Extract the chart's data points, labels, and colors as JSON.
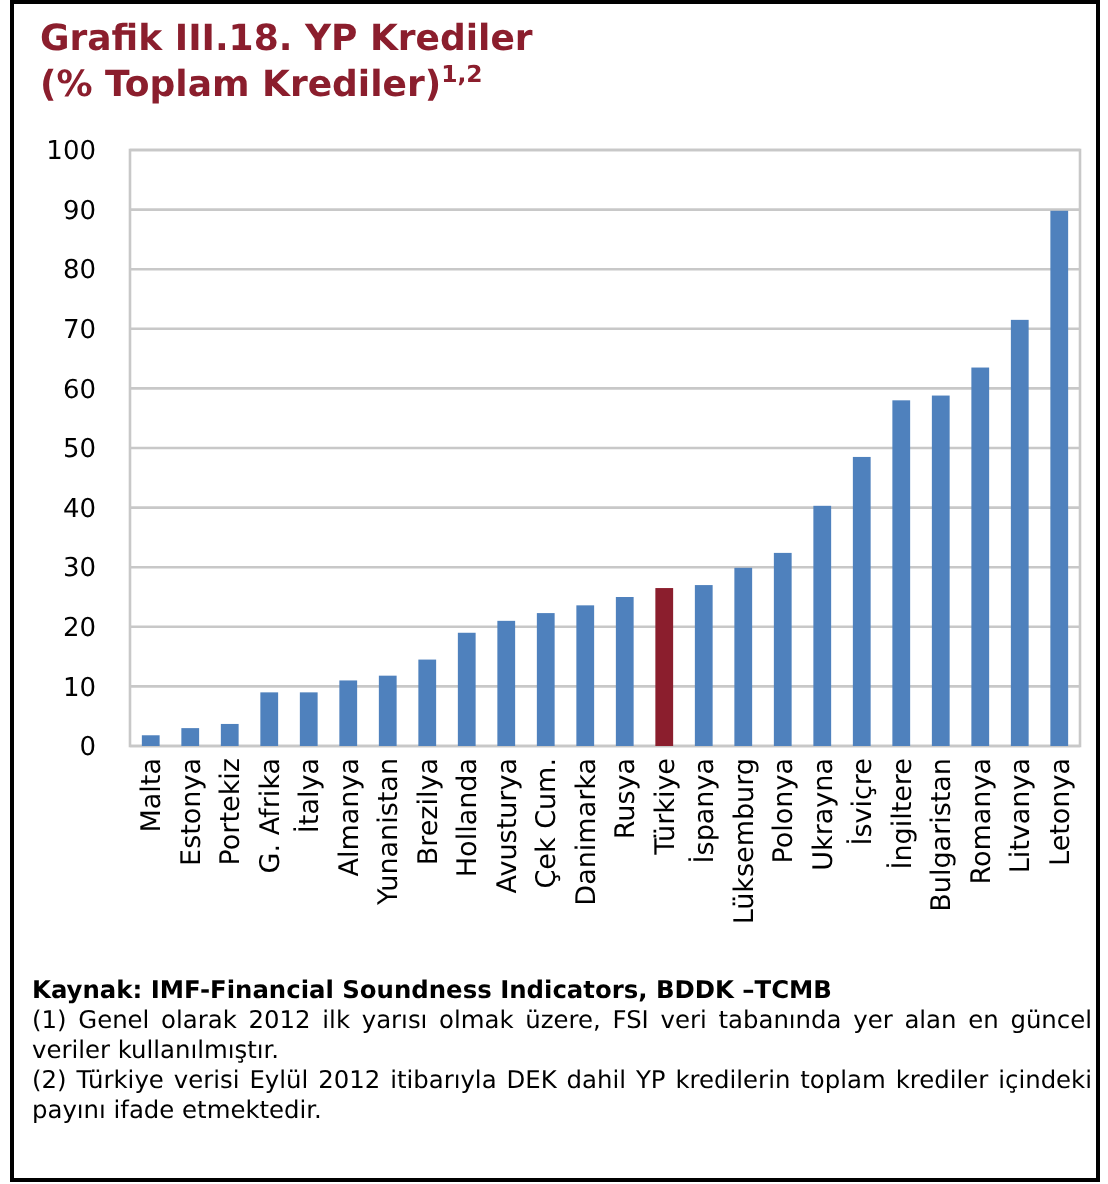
{
  "chart_data": {
    "type": "bar",
    "title": "Grafik III.18. YP Krediler",
    "subtitle": "(% Toplam Krediler)$^{1,2}$",
    "categories": [
      "Malta",
      "Estonya",
      "Portekiz",
      "G. Afrika",
      "İtalya",
      "Almanya",
      "Yunanistan",
      "Brezilya",
      "Hollanda",
      "Avusturya",
      "Çek Cum.",
      "Danimarka",
      "Rusya",
      "Türkiye",
      "İspanya",
      "Lüksemburg",
      "Polonya",
      "Ukrayna",
      "İsviçre",
      "İngiltere",
      "Bulgaristan",
      "Romanya",
      "Litvanya",
      "Letonya"
    ],
    "values": [
      1.8,
      3,
      3.7,
      9,
      9,
      11,
      11.8,
      14.5,
      19,
      21,
      22.3,
      23.6,
      25,
      26.5,
      27,
      29.9,
      32.4,
      40.3,
      48.5,
      58,
      58.8,
      63.5,
      71.5,
      89.8
    ],
    "colors": [
      "#4f81bd",
      "#4f81bd",
      "#4f81bd",
      "#4f81bd",
      "#4f81bd",
      "#4f81bd",
      "#4f81bd",
      "#4f81bd",
      "#4f81bd",
      "#4f81bd",
      "#4f81bd",
      "#4f81bd",
      "#4f81bd",
      "#8b1e2d",
      "#4f81bd",
      "#4f81bd",
      "#4f81bd",
      "#4f81bd",
      "#4f81bd",
      "#4f81bd",
      "#4f81bd",
      "#4f81bd",
      "#4f81bd",
      "#4f81bd"
    ],
    "ylim": [
      0,
      100
    ],
    "yticks": [
      0,
      10,
      20,
      30,
      40,
      50,
      60,
      70,
      80,
      90,
      100
    ],
    "grid": "y",
    "annotations": [
      "Kaynak: IMF-Financial Soundness Indicators, BDDK –TCMB",
      "(1) Genel olarak 2012 ilk yarısı olmak üzere, FSI veri tabanında yer alan en güncel veriler kullanılmıştır.",
      "(2) Türkiye verisi Eylül 2012 itibarıyla DEK dahil YP kredilerin toplam krediler içindeki payını ifade etmektedir."
    ]
  }
}
